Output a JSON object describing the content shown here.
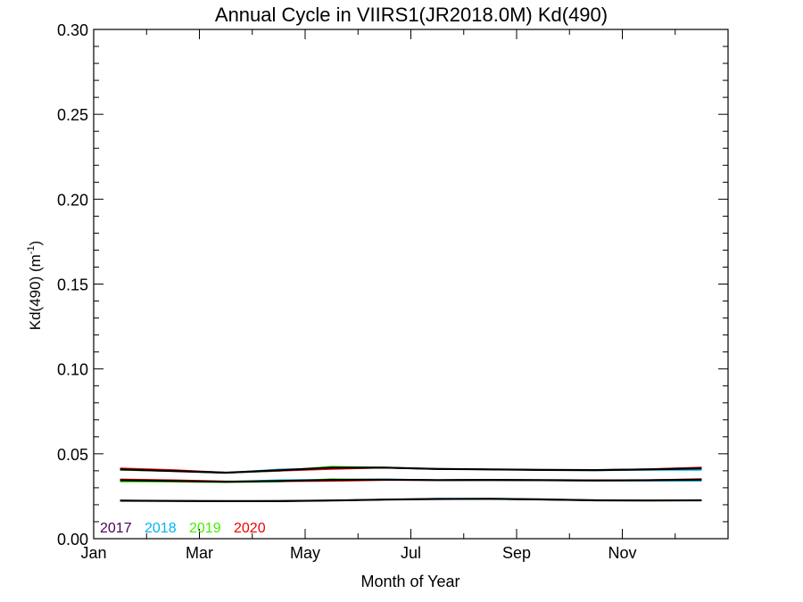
{
  "chart_data": {
    "type": "line",
    "title": "Annual Cycle in VIIRS1(JR2018.0M) Kd(490)",
    "xlabel": "Month of Year",
    "ylabel_base": "Kd(490) (m",
    "ylabel_sup": "-1",
    "ylabel_close": ")",
    "xlim": [
      0,
      12
    ],
    "ylim": [
      0,
      0.3
    ],
    "x_ticks": [
      {
        "value": 0,
        "label": "Jan"
      },
      {
        "value": 2,
        "label": "Mar"
      },
      {
        "value": 4,
        "label": "May"
      },
      {
        "value": 6,
        "label": "Jul"
      },
      {
        "value": 8,
        "label": "Sep"
      },
      {
        "value": 10,
        "label": "Nov"
      }
    ],
    "y_ticks": [
      {
        "value": 0.0,
        "label": "0.00"
      },
      {
        "value": 0.05,
        "label": "0.05"
      },
      {
        "value": 0.1,
        "label": "0.10"
      },
      {
        "value": 0.15,
        "label": "0.15"
      },
      {
        "value": 0.2,
        "label": "0.20"
      },
      {
        "value": 0.25,
        "label": "0.25"
      },
      {
        "value": 0.3,
        "label": "0.30"
      }
    ],
    "legend": [
      {
        "label": "2017",
        "color": "#4b0055"
      },
      {
        "label": "2018",
        "color": "#00b4f0"
      },
      {
        "label": "2019",
        "color": "#44ee00"
      },
      {
        "label": "2020",
        "color": "#ee0000"
      }
    ],
    "legend_placement": "bottom-left",
    "x": [
      0.5,
      1.5,
      2.5,
      3.5,
      4.5,
      5.5,
      6.5,
      7.5,
      8.5,
      9.5,
      10.5,
      11.5
    ],
    "groups": [
      {
        "series": [
          {
            "name": "2017",
            "color": "#4b0055",
            "values": [
              0.041,
              0.04,
              0.0388,
              0.04,
              0.042,
              0.0418,
              0.041,
              0.0408,
              0.0405,
              0.0404,
              0.0408,
              0.0412
            ]
          },
          {
            "name": "2018",
            "color": "#00b4f0",
            "values": [
              0.0405,
              0.0398,
              0.0388,
              0.0408,
              0.0415,
              0.0418,
              0.0412,
              0.0408,
              0.0405,
              0.0402,
              0.0405,
              0.0405
            ]
          },
          {
            "name": "2019",
            "color": "#44ee00",
            "values": [
              0.0405,
              0.0398,
              0.0388,
              0.04,
              0.0425,
              0.042,
              0.041,
              0.0408,
              0.0405,
              0.0404,
              0.041,
              0.0418
            ]
          },
          {
            "name": "2020",
            "color": "#ee0000",
            "values": [
              0.0415,
              0.0405,
              0.039,
              0.04,
              0.041,
              0.0418,
              0.041,
              0.0408,
              0.0405,
              0.0405,
              0.041,
              0.042
            ]
          },
          {
            "name": "",
            "color": "#000000",
            "values": [
              0.0408,
              0.0399,
              0.0389,
              0.0403,
              0.0418,
              0.0419,
              0.0411,
              0.0408,
              0.0405,
              0.0404,
              0.0408,
              0.0414
            ]
          }
        ]
      },
      {
        "series": [
          {
            "name": "2017",
            "color": "#4b0055",
            "values": [
              0.0345,
              0.034,
              0.0335,
              0.034,
              0.0345,
              0.0348,
              0.0345,
              0.0345,
              0.0343,
              0.0342,
              0.0343,
              0.0348
            ]
          },
          {
            "name": "2018",
            "color": "#00b4f0",
            "values": [
              0.0345,
              0.034,
              0.0335,
              0.0345,
              0.0348,
              0.035,
              0.0345,
              0.0348,
              0.0345,
              0.0343,
              0.0342,
              0.034
            ]
          },
          {
            "name": "2019",
            "color": "#44ee00",
            "values": [
              0.0335,
              0.0335,
              0.0332,
              0.0335,
              0.0352,
              0.0348,
              0.0345,
              0.0345,
              0.0345,
              0.0343,
              0.0345,
              0.035
            ]
          },
          {
            "name": "2020",
            "color": "#ee0000",
            "values": [
              0.035,
              0.0345,
              0.0338,
              0.0338,
              0.034,
              0.0345,
              0.0345,
              0.0345,
              0.0345,
              0.0345,
              0.0345,
              0.0352
            ]
          },
          {
            "name": "",
            "color": "#000000",
            "values": [
              0.0344,
              0.034,
              0.0335,
              0.034,
              0.0346,
              0.0348,
              0.0345,
              0.0346,
              0.0345,
              0.0343,
              0.0344,
              0.0348
            ]
          }
        ]
      },
      {
        "series": [
          {
            "name": "2017",
            "color": "#4b0055",
            "values": [
              0.0225,
              0.0222,
              0.0221,
              0.0221,
              0.0225,
              0.023,
              0.0234,
              0.0234,
              0.023,
              0.0226,
              0.0225,
              0.0226
            ]
          },
          {
            "name": "2018",
            "color": "#00b4f0",
            "values": [
              0.0224,
              0.0222,
              0.0221,
              0.0222,
              0.0226,
              0.023,
              0.0236,
              0.0237,
              0.0232,
              0.0227,
              0.0225,
              0.0226
            ]
          },
          {
            "name": "2019",
            "color": "#44ee00",
            "values": [
              0.0224,
              0.0221,
              0.0221,
              0.0221,
              0.0225,
              0.0231,
              0.0234,
              0.0234,
              0.023,
              0.0225,
              0.0224,
              0.0225
            ]
          },
          {
            "name": "2020",
            "color": "#ee0000",
            "values": [
              0.0225,
              0.0222,
              0.0221,
              0.0222,
              0.0225,
              0.023,
              0.0234,
              0.0234,
              0.023,
              0.0226,
              0.0225,
              0.0226
            ]
          },
          {
            "name": "",
            "color": "#000000",
            "values": [
              0.0224,
              0.0222,
              0.0221,
              0.0221,
              0.0225,
              0.023,
              0.0234,
              0.0235,
              0.0231,
              0.0226,
              0.0225,
              0.0226
            ]
          }
        ]
      }
    ]
  }
}
